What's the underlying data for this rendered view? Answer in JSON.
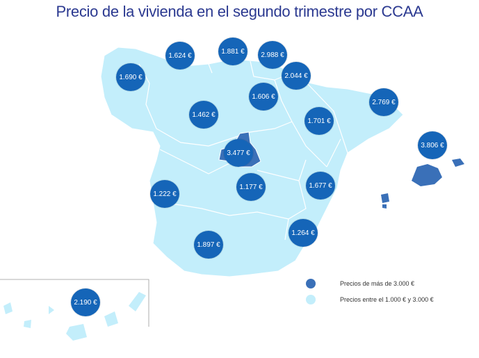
{
  "title": "Precio de la vivienda en el segundo trimestre por CCAA",
  "colors": {
    "high": "#3a70b8",
    "normal": "#c3eefb",
    "bubble": "#1565b8",
    "title": "#2b3990"
  },
  "regions": [
    {
      "id": "galicia",
      "price": "1.690 €"
    },
    {
      "id": "asturias",
      "price": "1.624 €"
    },
    {
      "id": "cantabria",
      "price": "1.881 €"
    },
    {
      "id": "pais-vasco",
      "price": "2.988 €"
    },
    {
      "id": "navarra",
      "price": "2.044 €"
    },
    {
      "id": "la-rioja",
      "price": "1.606 €"
    },
    {
      "id": "cataluna",
      "price": "2.769 €"
    },
    {
      "id": "castilla-y-leon",
      "price": "1.462 €"
    },
    {
      "id": "aragon",
      "price": "1.701 €"
    },
    {
      "id": "baleares",
      "price": "3.806 €"
    },
    {
      "id": "madrid",
      "price": "3.477 €"
    },
    {
      "id": "castilla-la-mancha",
      "price": "1.177 €"
    },
    {
      "id": "comunidad-valenciana",
      "price": "1.677 €"
    },
    {
      "id": "extremadura",
      "price": "1.222 €"
    },
    {
      "id": "murcia",
      "price": "1.264 €"
    },
    {
      "id": "andalucia",
      "price": "1.897 €"
    },
    {
      "id": "canarias",
      "price": "2.190 €"
    }
  ],
  "legend": {
    "high": "Precios de más de 3.000 €",
    "normal": "Precios entre el 1.000 € y 3.000 €"
  }
}
